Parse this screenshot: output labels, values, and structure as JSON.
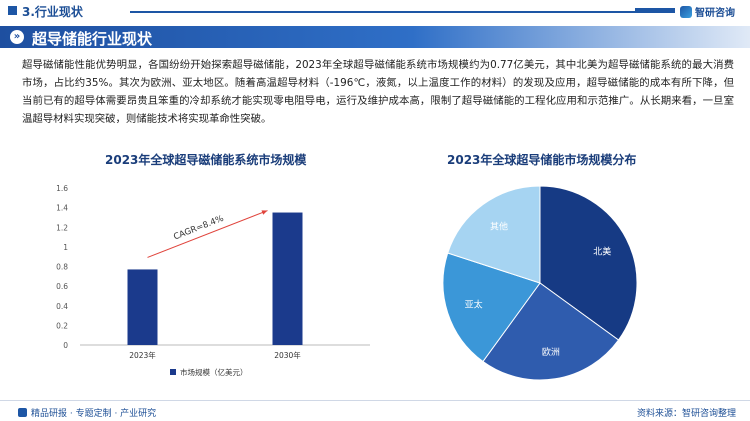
{
  "header": {
    "section": "3.行业现状",
    "logo": "智研咨询"
  },
  "title": "超导储能行业现状",
  "paragraph": "超导磁储能性能优势明显，各国纷纷开始探索超导磁储能，2023年全球超导磁储能系统市场规模约为0.77亿美元，其中北美为超导磁储能系统的最大消费市场，占比约35%。其次为欧洲、亚太地区。随着高温超导材料（-196℃，液氮，以上温度工作的材料）的发现及应用，超导磁储能的成本有所下降，但当前已有的超导体需要昂贵且笨重的冷却系统才能实现零电阻导电，运行及维护成本高，限制了超导磁储能的工程化应用和示范推广。从长期来看，一旦室温超导材料实现突破，则储能技术将实现革命性突破。",
  "colors": {
    "primary": "#1d4f96",
    "bar": "#1b3a8c",
    "arrow": "#e0443c"
  },
  "chart_data": [
    {
      "type": "bar",
      "title": "2023年全球超导磁储能系统市场规模",
      "categories": [
        "2023年",
        "2030年"
      ],
      "series": [
        {
          "name": "市场规模（亿美元）",
          "values": [
            0.77,
            1.35
          ]
        }
      ],
      "ylim": [
        0,
        1.6
      ],
      "yticks": [
        "0",
        "0.2",
        "0.4",
        "0.6",
        "0.8",
        "1",
        "1.2",
        "1.4",
        "1.6"
      ],
      "annotation": "CAGR=8.4%",
      "legend": "bottom"
    },
    {
      "type": "pie",
      "title": "2023年全球超导储能市场规模分布",
      "labels": [
        "北美",
        "欧洲",
        "亚太",
        "其他"
      ],
      "values": [
        35,
        25,
        20,
        20
      ],
      "colors": [
        "#163a84",
        "#2f5cae",
        "#3b97d8",
        "#a6d4f2"
      ]
    }
  ],
  "footer": {
    "links": "精品研报 · 专题定制 · 产业研究",
    "source": "资料来源：智研咨询整理"
  }
}
